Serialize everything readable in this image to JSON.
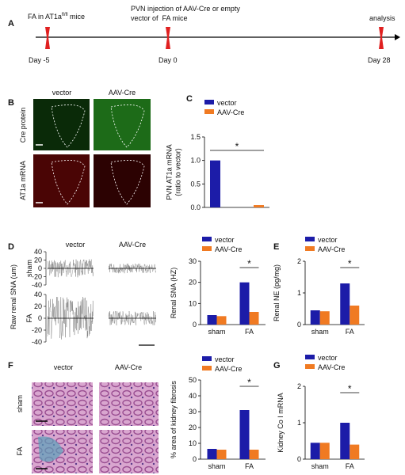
{
  "panels": [
    "A",
    "B",
    "C",
    "D",
    "E",
    "F",
    "G"
  ],
  "timeline": {
    "pre_label": {
      "text": "FA in AT1a",
      "sup": "fl/fl",
      "tail": " mice"
    },
    "injection": [
      "PVN injection of AAV-Cre or empty",
      "vector of  FA mice"
    ],
    "end_label": "analysis",
    "days": [
      "Day -5",
      "Day 0",
      "Day 28"
    ]
  },
  "image_panels": {
    "B": {
      "columns": [
        "vector",
        "AAV-Cre"
      ],
      "rows": [
        "Cre protein",
        "AT1a mRNA"
      ]
    },
    "D": {
      "columns": [
        "vector",
        "AAV-Cre"
      ],
      "rows": [
        "sham",
        "FA"
      ],
      "ylabel": "Raw renal SNA (um)",
      "yticks": [
        40,
        20,
        0,
        -20,
        -40
      ]
    },
    "F": {
      "columns": [
        "vector",
        "AAV-Cre"
      ],
      "rows": [
        "sham",
        "FA"
      ]
    }
  },
  "chart_data": [
    {
      "type": "bar",
      "ylabel": [
        "PVN AT1a mRNA",
        "(ratio to vector)"
      ],
      "categories": [
        null
      ],
      "series": [
        {
          "name": "vector",
          "color": "#1c1ca8",
          "values": [
            1.0
          ]
        },
        {
          "name": "AAV-Cre",
          "color": "#f07a22",
          "values": [
            0.05
          ]
        }
      ],
      "ylim": [
        0,
        1.5
      ],
      "yticks": [
        {
          "value": 0,
          "label": "0.0"
        },
        {
          "value": 0.5,
          "label": "0.5"
        },
        {
          "value": 1,
          "label": "1.0"
        },
        {
          "value": 1.5,
          "label": "1.5"
        }
      ],
      "annotation": "*"
    },
    {
      "type": "bar",
      "ylabel": [
        "Renal SNA (HZ)"
      ],
      "categories": [
        "sham",
        "FA"
      ],
      "series": [
        {
          "name": "vector",
          "color": "#1c1ca8",
          "values": [
            4.5,
            20
          ]
        },
        {
          "name": "AAV-Cre",
          "color": "#f07a22",
          "values": [
            4,
            6
          ]
        }
      ],
      "ylim": [
        0,
        30
      ],
      "yticks": [
        0,
        10,
        20,
        30
      ],
      "annotation": "*"
    },
    {
      "type": "bar",
      "ylabel": [
        "Renal NE (pg/mg)"
      ],
      "categories": [
        "sham",
        "FA"
      ],
      "series": [
        {
          "name": "vector",
          "color": "#1c1ca8",
          "values": [
            0.45,
            1.3
          ]
        },
        {
          "name": "AAV-Cre",
          "color": "#f07a22",
          "values": [
            0.42,
            0.6
          ]
        }
      ],
      "ylim": [
        0,
        2
      ],
      "yticks": [
        0,
        1,
        2
      ],
      "annotation": "*"
    },
    {
      "type": "bar",
      "ylabel": [
        "% area of kidney fibrosis"
      ],
      "categories": [
        "sham",
        "FA"
      ],
      "series": [
        {
          "name": "vector",
          "color": "#1c1ca8",
          "values": [
            6.5,
            31
          ]
        },
        {
          "name": "AAV-Cre",
          "color": "#f07a22",
          "values": [
            6,
            6
          ]
        }
      ],
      "ylim": [
        0,
        50
      ],
      "yticks": [
        0,
        10,
        20,
        30,
        40,
        50
      ],
      "annotation": "*"
    },
    {
      "type": "bar",
      "ylabel": [
        "Kidney Co I mRNA"
      ],
      "categories": [
        "sham",
        "FA"
      ],
      "series": [
        {
          "name": "vector",
          "color": "#1c1ca8",
          "values": [
            0.45,
            1.0
          ]
        },
        {
          "name": "AAV-Cre",
          "color": "#f07a22",
          "values": [
            0.45,
            0.4
          ]
        }
      ],
      "ylim": [
        0,
        2
      ],
      "yticks": [
        0,
        1,
        2
      ],
      "annotation": "*"
    }
  ]
}
